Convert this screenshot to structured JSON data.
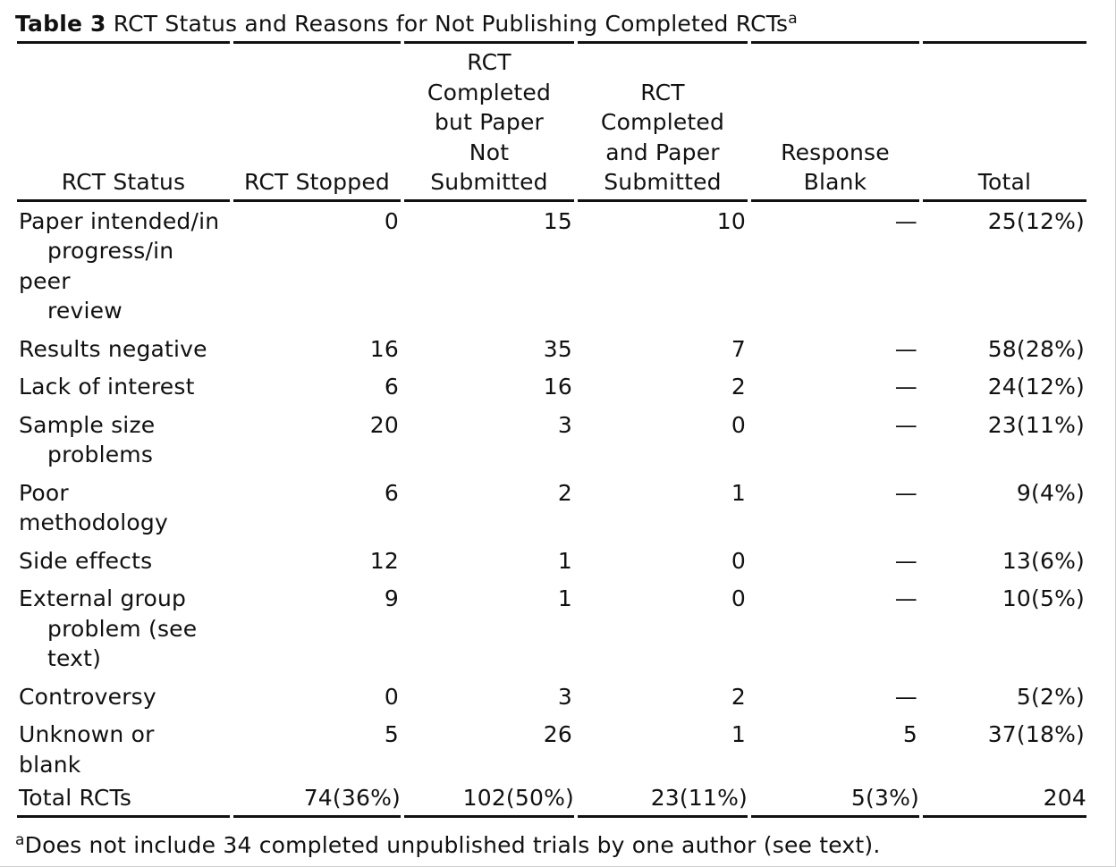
{
  "table": {
    "label": "Table 3",
    "title": "RCT Status and Reasons for Not Publishing Completed RCTs",
    "title_note": "a",
    "headers": [
      [
        "RCT Status"
      ],
      [
        "RCT Stopped"
      ],
      [
        "RCT",
        "Completed",
        "but Paper",
        "Not",
        "Submitted"
      ],
      [
        "RCT",
        "Completed",
        "and Paper",
        "Submitted"
      ],
      [
        "Response",
        "Blank"
      ],
      [
        "Total"
      ]
    ],
    "rows": [
      {
        "status": [
          "Paper intended/in",
          "progress/in",
          "peer",
          "review"
        ],
        "indent": [
          false,
          true,
          false,
          true
        ],
        "values": [
          "0",
          "15",
          "10",
          "—",
          "25(12%)"
        ]
      },
      {
        "status": [
          "Results negative"
        ],
        "indent": [
          false
        ],
        "values": [
          "16",
          "35",
          "7",
          "—",
          "58(28%)"
        ]
      },
      {
        "status": [
          "Lack of interest"
        ],
        "indent": [
          false
        ],
        "values": [
          "6",
          "16",
          "2",
          "—",
          "24(12%)"
        ]
      },
      {
        "status": [
          "Sample size",
          "problems"
        ],
        "indent": [
          false,
          true
        ],
        "values": [
          "20",
          "3",
          "0",
          "—",
          "23(11%)"
        ]
      },
      {
        "status": [
          "Poor",
          "methodology"
        ],
        "indent": [
          false,
          false
        ],
        "values": [
          "6",
          "2",
          "1",
          "—",
          "9(4%)"
        ]
      },
      {
        "status": [
          "Side effects"
        ],
        "indent": [
          false
        ],
        "values": [
          "12",
          "1",
          "0",
          "—",
          "13(6%)"
        ]
      },
      {
        "status": [
          "External group",
          "problem (see",
          "text)"
        ],
        "indent": [
          false,
          true,
          true
        ],
        "values": [
          "9",
          "1",
          "0",
          "—",
          "10(5%)"
        ]
      },
      {
        "status": [
          "Controversy"
        ],
        "indent": [
          false
        ],
        "values": [
          "0",
          "3",
          "2",
          "—",
          "5(2%)"
        ]
      },
      {
        "status": [
          "Unknown or",
          "blank"
        ],
        "indent": [
          false,
          false
        ],
        "values": [
          "5",
          "26",
          "1",
          "5",
          "37(18%)"
        ]
      }
    ],
    "total_row": {
      "status": "Total RCTs",
      "values": [
        "74(36%)",
        "102(50%)",
        "23(11%)",
        "5(3%)",
        "204"
      ]
    },
    "footnote": {
      "marker": "a",
      "text": "Does not include 34 completed unpublished trials by one author (see text)."
    }
  }
}
